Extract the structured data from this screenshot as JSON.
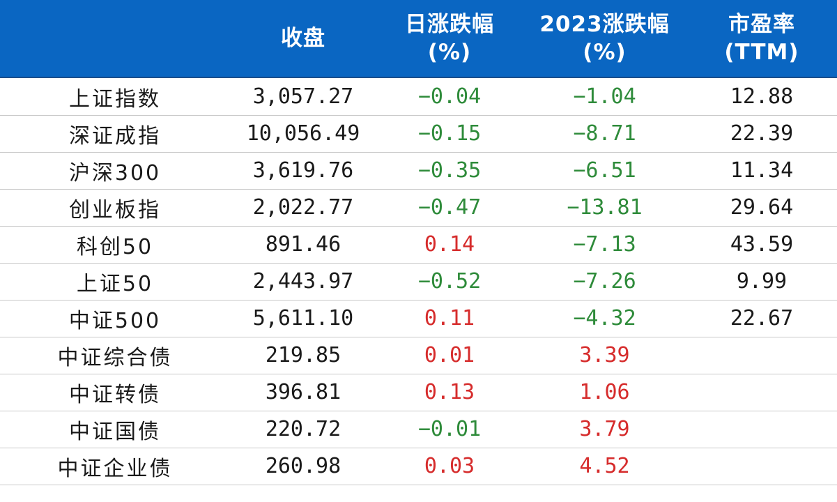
{
  "header": {
    "col_close": "收盘",
    "col_daily_line1": "日涨跌幅",
    "col_daily_line2": "(%)",
    "col_ytd_line1": "2023涨跌幅",
    "col_ytd_line2": "(%)",
    "col_pe_line1": "市盈率",
    "col_pe_line2": "(TTM)"
  },
  "rows": [
    {
      "name": "上证指数",
      "close": "3,057.27",
      "daily": "−0.04",
      "ytd": "−1.04",
      "pe": "12.88",
      "daily_sign": "neg",
      "ytd_sign": "neg"
    },
    {
      "name": "深证成指",
      "close": "10,056.49",
      "daily": "−0.15",
      "ytd": "−8.71",
      "pe": "22.39",
      "daily_sign": "neg",
      "ytd_sign": "neg"
    },
    {
      "name": "沪深300",
      "close": "3,619.76",
      "daily": "−0.35",
      "ytd": "−6.51",
      "pe": "11.34",
      "daily_sign": "neg",
      "ytd_sign": "neg"
    },
    {
      "name": "创业板指",
      "close": "2,022.77",
      "daily": "−0.47",
      "ytd": "−13.81",
      "pe": "29.64",
      "daily_sign": "neg",
      "ytd_sign": "neg"
    },
    {
      "name": "科创50",
      "close": "891.46",
      "daily": "0.14",
      "ytd": "−7.13",
      "pe": "43.59",
      "daily_sign": "pos",
      "ytd_sign": "neg"
    },
    {
      "name": "上证50",
      "close": "2,443.97",
      "daily": "−0.52",
      "ytd": "−7.26",
      "pe": "9.99",
      "daily_sign": "neg",
      "ytd_sign": "neg"
    },
    {
      "name": "中证500",
      "close": "5,611.10",
      "daily": "0.11",
      "ytd": "−4.32",
      "pe": "22.67",
      "daily_sign": "pos",
      "ytd_sign": "neg"
    },
    {
      "name": "中证综合债",
      "close": "219.85",
      "daily": "0.01",
      "ytd": "3.39",
      "pe": "",
      "daily_sign": "pos",
      "ytd_sign": "pos"
    },
    {
      "name": "中证转债",
      "close": "396.81",
      "daily": "0.13",
      "ytd": "1.06",
      "pe": "",
      "daily_sign": "pos",
      "ytd_sign": "pos"
    },
    {
      "name": "中证国债",
      "close": "220.72",
      "daily": "−0.01",
      "ytd": "3.79",
      "pe": "",
      "daily_sign": "neg",
      "ytd_sign": "pos"
    },
    {
      "name": "中证企业债",
      "close": "260.98",
      "daily": "0.03",
      "ytd": "4.52",
      "pe": "",
      "daily_sign": "pos",
      "ytd_sign": "pos"
    }
  ],
  "colors": {
    "header_bg": "#0a66c2",
    "negative": "#2e8b3a",
    "positive": "#d62c2c"
  }
}
